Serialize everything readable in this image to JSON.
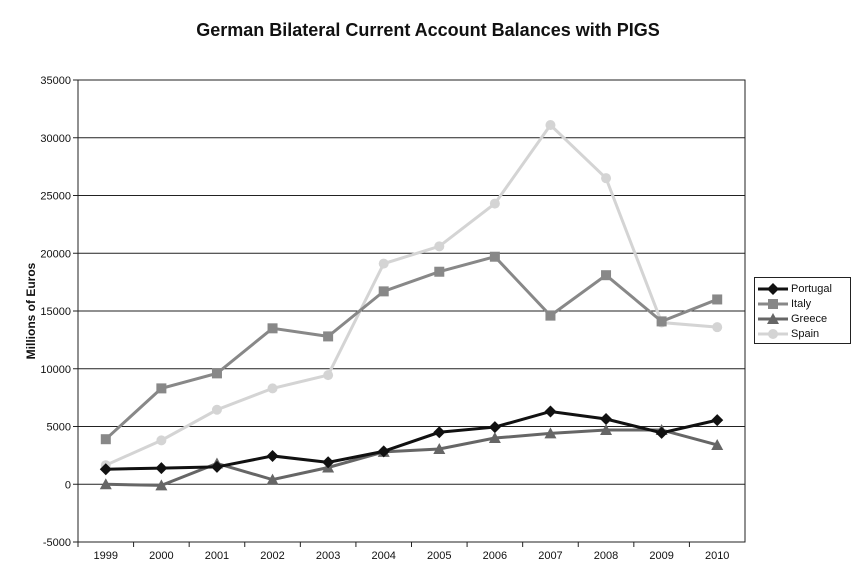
{
  "chart_data": {
    "type": "line",
    "title": "German Bilateral Current Account Balances with PIGS",
    "xlabel": "",
    "ylabel": "Millions of Euros",
    "ylim": [
      -5000,
      35000
    ],
    "yticks": [
      "35000",
      "30000",
      "25000",
      "20000",
      "15000",
      "10000",
      "5000",
      "0",
      "-5000"
    ],
    "ytick_values": [
      35000,
      30000,
      25000,
      20000,
      15000,
      10000,
      5000,
      0,
      -5000
    ],
    "categories": [
      "1999",
      "2000",
      "2001",
      "2002",
      "2003",
      "2004",
      "2005",
      "2006",
      "2007",
      "2008",
      "2009",
      "2010"
    ],
    "grid": "horizontal",
    "legend_position": "right",
    "series": [
      {
        "name": "Portugal",
        "color": "#111111",
        "marker": "diamond",
        "values": [
          1300,
          1400,
          1500,
          2450,
          1900,
          2850,
          4500,
          4950,
          6300,
          5650,
          4450,
          5550
        ]
      },
      {
        "name": "Italy",
        "color": "#888888",
        "marker": "square",
        "values": [
          3900,
          8300,
          9600,
          13500,
          12800,
          16700,
          18400,
          19700,
          14600,
          18100,
          14100,
          16000
        ]
      },
      {
        "name": "Greece",
        "color": "#666666",
        "marker": "triangle",
        "values": [
          0,
          -100,
          1800,
          400,
          1450,
          2800,
          3050,
          4000,
          4400,
          4700,
          4700,
          3400
        ]
      },
      {
        "name": "Spain",
        "color": "#d4d4d4",
        "marker": "circle",
        "values": [
          1650,
          3800,
          6450,
          8300,
          9450,
          19100,
          20600,
          24300,
          31100,
          26500,
          14000,
          13600
        ]
      }
    ]
  }
}
